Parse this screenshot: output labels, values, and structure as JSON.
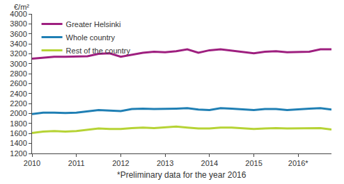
{
  "chart_data": {
    "type": "line",
    "y_label": "€/m²",
    "annotations": [
      "*Preliminary data for the year 2016"
    ],
    "categories": [
      "2010",
      null,
      null,
      null,
      "2011",
      null,
      null,
      null,
      "2012",
      null,
      null,
      null,
      "2013",
      null,
      null,
      null,
      "2014",
      null,
      null,
      null,
      "2015",
      null,
      null,
      null,
      "2016*",
      null,
      null,
      null
    ],
    "series": [
      {
        "name": "Greater Helsinki",
        "color": "#9e1f7f",
        "values": [
          3100,
          3120,
          3140,
          3140,
          3140,
          3150,
          3200,
          3210,
          3140,
          3180,
          3220,
          3240,
          3230,
          3250,
          3290,
          3220,
          3270,
          3290,
          3260,
          3240,
          3210,
          3240,
          3250,
          3230,
          3230,
          3240,
          3290,
          3290
        ]
      },
      {
        "name": "Whole country",
        "color": "#1f7fb4",
        "values": [
          1990,
          2020,
          2020,
          2010,
          2020,
          2050,
          2070,
          2060,
          2050,
          2090,
          2100,
          2090,
          2090,
          2100,
          2110,
          2080,
          2070,
          2110,
          2100,
          2080,
          2070,
          2090,
          2090,
          2070,
          2090,
          2100,
          2110,
          2080
        ]
      },
      {
        "name": "Rest of the country",
        "color": "#b6d335",
        "values": [
          1610,
          1640,
          1650,
          1640,
          1650,
          1680,
          1700,
          1690,
          1690,
          1710,
          1720,
          1710,
          1720,
          1740,
          1720,
          1700,
          1700,
          1720,
          1720,
          1700,
          1690,
          1700,
          1710,
          1700,
          1700,
          1710,
          1710,
          1680
        ]
      }
    ],
    "ylim": [
      1200,
      4000
    ],
    "yticks": [
      1200,
      1400,
      1600,
      1800,
      2000,
      2200,
      2400,
      2600,
      2800,
      3000,
      3200,
      3400,
      3600,
      3800,
      4000
    ],
    "grid": false,
    "legend": "upper left"
  }
}
